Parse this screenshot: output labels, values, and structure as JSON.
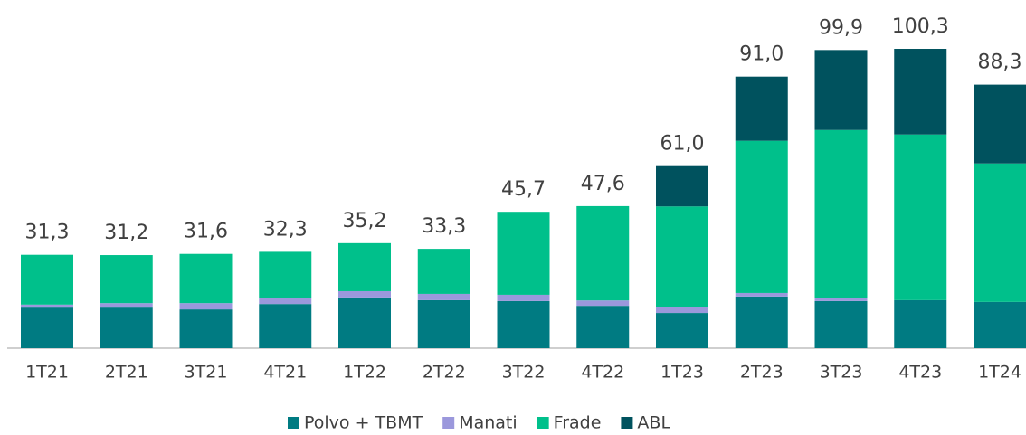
{
  "chart_data": {
    "type": "stacked_bar",
    "categories": [
      "1T21",
      "2T21",
      "3T21",
      "4T21",
      "1T22",
      "2T22",
      "3T22",
      "4T22",
      "1T23",
      "2T23",
      "3T23",
      "4T23",
      "1T24"
    ],
    "series": [
      {
        "name": "Polvo + TBMT",
        "color": "#007b82",
        "values": [
          13.6,
          13.6,
          13.0,
          14.8,
          17.0,
          16.1,
          15.8,
          14.2,
          11.8,
          17.3,
          15.8,
          16.1,
          15.5
        ]
      },
      {
        "name": "Manati",
        "color": "#9b98dc",
        "values": [
          1.0,
          1.5,
          2.1,
          2.1,
          2.1,
          2.1,
          2.1,
          1.8,
          2.1,
          1.2,
          0.9,
          null,
          null
        ]
      },
      {
        "name": "Frade",
        "color": "#00c08b",
        "values": [
          16.7,
          16.1,
          16.5,
          15.4,
          16.1,
          15.1,
          27.8,
          31.6,
          33.6,
          51.0,
          56.4,
          55.5,
          46.4
        ]
      },
      {
        "name": "ABL",
        "color": "#00525e",
        "values": [
          null,
          null,
          null,
          null,
          null,
          null,
          null,
          null,
          13.5,
          21.5,
          26.8,
          28.7,
          26.4
        ]
      }
    ],
    "totals": [
      31.3,
      31.2,
      31.6,
      32.3,
      35.2,
      33.3,
      45.7,
      47.6,
      61.0,
      91.0,
      99.9,
      100.3,
      88.3
    ],
    "total_labels": [
      "31,3",
      "31,2",
      "31,6",
      "32,3",
      "35,2",
      "33,3",
      "45,7",
      "47,6",
      "61,0",
      "91,0",
      "99,9",
      "100,3",
      "88,3"
    ]
  }
}
